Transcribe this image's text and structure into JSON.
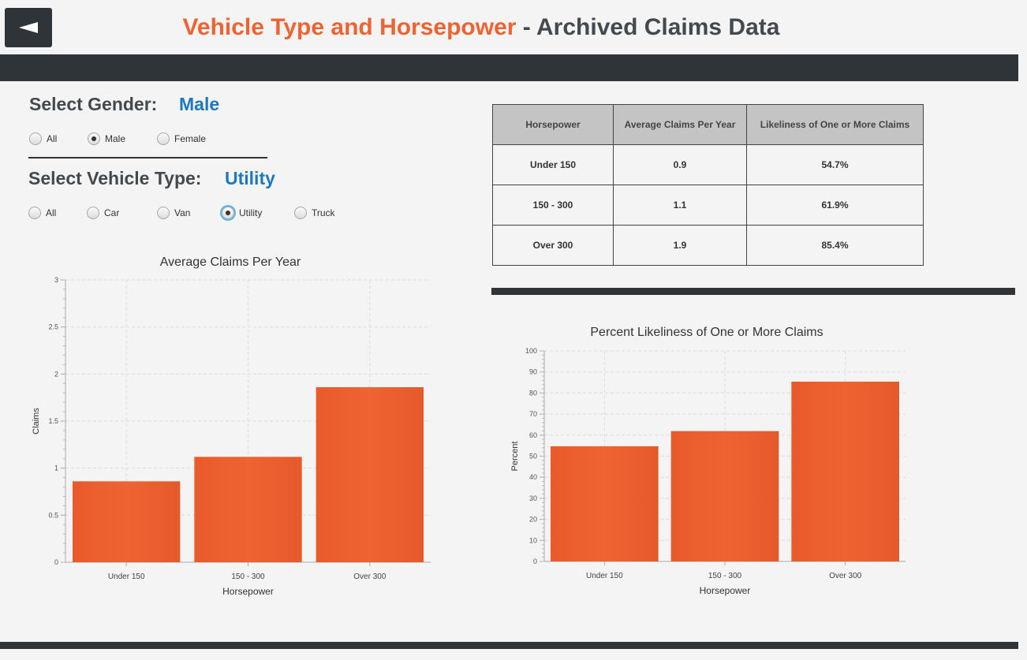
{
  "header": {
    "title_accent": "Vehicle Type and Horsepower",
    "title_rest": " - Archived Claims Data"
  },
  "gender": {
    "label": "Select Gender:",
    "selected": "Male",
    "options": [
      "All",
      "Male",
      "Female"
    ]
  },
  "vehicle": {
    "label": "Select Vehicle Type:",
    "selected": "Utility",
    "options": [
      "All",
      "Car",
      "Van",
      "Utility",
      "Truck"
    ]
  },
  "table": {
    "headers": [
      "Horsepower",
      "Average Claims Per Year",
      "Likeliness of One or More Claims"
    ],
    "rows": [
      [
        "Under 150",
        "0.9",
        "54.7%"
      ],
      [
        "150 - 300",
        "1.1",
        "61.9%"
      ],
      [
        "Over 300",
        "1.9",
        "85.4%"
      ]
    ]
  },
  "colors": {
    "bar": "#ee6331",
    "dark": "#2f3439",
    "accent_blue": "#1e78be",
    "title_orange": "#ee6331"
  },
  "chart_data": [
    {
      "type": "bar",
      "title": "Average Claims Per Year",
      "xlabel": "Horsepower",
      "ylabel": "Claims",
      "categories": [
        "Under 150",
        "150 - 300",
        "Over 300"
      ],
      "values": [
        0.86,
        1.12,
        1.86
      ],
      "ylim": [
        0,
        3
      ],
      "yticks": [
        "0",
        "0.5",
        "1",
        "1.5",
        "2",
        "2.5",
        "3"
      ],
      "grid": true
    },
    {
      "type": "bar",
      "title": "Percent Likeliness of One or More Claims",
      "xlabel": "Horsepower",
      "ylabel": "Percent",
      "categories": [
        "Under 150",
        "150 - 300",
        "Over 300"
      ],
      "values": [
        54.7,
        61.9,
        85.4
      ],
      "ylim": [
        0,
        100
      ],
      "yticks": [
        "0",
        "10",
        "20",
        "30",
        "40",
        "50",
        "60",
        "70",
        "80",
        "90",
        "100"
      ],
      "grid": true
    }
  ]
}
